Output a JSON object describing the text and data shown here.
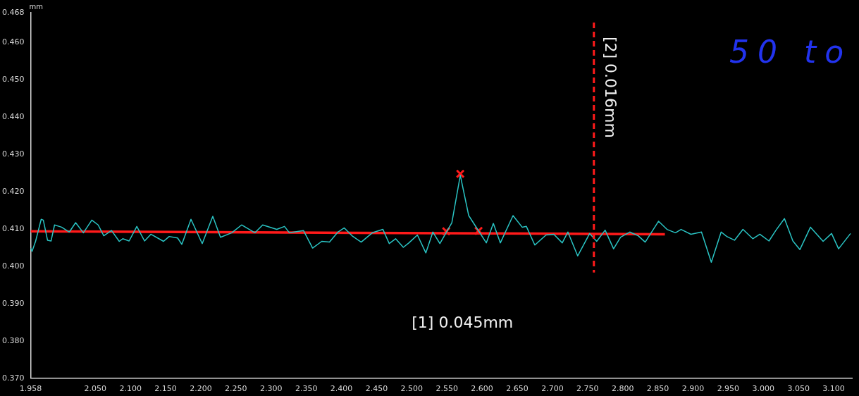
{
  "chart_data": {
    "type": "line",
    "ylabel": "mm",
    "xlim": [
      1.958,
      3.126
    ],
    "ylim": [
      0.37,
      0.468
    ],
    "xticks": [
      1.958,
      {
        "value": 2.05,
        "label": "2.050"
      },
      {
        "value": 2.1,
        "label": "2.100"
      },
      {
        "value": 2.15,
        "label": "2.150"
      },
      {
        "value": 2.2,
        "label": "2.200"
      },
      {
        "value": 2.25,
        "label": "2.250"
      },
      {
        "value": 2.3,
        "label": "2.300"
      },
      {
        "value": 2.35,
        "label": "2.350"
      },
      {
        "value": 2.4,
        "label": "2.400"
      },
      {
        "value": 2.45,
        "label": "2.450"
      },
      {
        "value": 2.5,
        "label": "2.500"
      },
      {
        "value": 2.55,
        "label": "2.550"
      },
      {
        "value": 2.6,
        "label": "2.600"
      },
      {
        "value": 2.65,
        "label": "2.650"
      },
      {
        "value": 2.7,
        "label": "2.700"
      },
      {
        "value": 2.75,
        "label": "2.750"
      },
      {
        "value": 2.8,
        "label": "2.800"
      },
      {
        "value": 2.85,
        "label": "2.850"
      },
      {
        "value": 2.9,
        "label": "2.900"
      },
      {
        "value": 2.95,
        "label": "2.950"
      },
      {
        "value": 3.0,
        "label": "3.000"
      },
      {
        "value": 3.05,
        "label": "3.050"
      },
      {
        "value": 3.1,
        "label": "3.100"
      }
    ],
    "yticks": [
      {
        "value": 0.37,
        "label": "0.370"
      },
      {
        "value": 0.38,
        "label": "0.380"
      },
      {
        "value": 0.39,
        "label": "0.390"
      },
      {
        "value": 0.4,
        "label": "0.400"
      },
      {
        "value": 0.41,
        "label": "0.410"
      },
      {
        "value": 0.42,
        "label": "0.420"
      },
      {
        "value": 0.43,
        "label": "0.430"
      },
      {
        "value": 0.44,
        "label": "0.440"
      },
      {
        "value": 0.45,
        "label": "0.450"
      },
      {
        "value": 0.46,
        "label": "0.460"
      },
      0.468
    ],
    "grid": false,
    "legend": false,
    "series": [
      {
        "color": "#2ac4c4",
        "x": [
          1.958,
          1.96,
          1.965,
          1.973,
          1.976,
          1.982,
          1.987,
          1.992,
          2.002,
          2.013,
          2.022,
          2.033,
          2.045,
          2.054,
          2.062,
          2.073,
          2.084,
          2.089,
          2.098,
          2.109,
          2.12,
          2.129,
          2.147,
          2.155,
          2.167,
          2.173,
          2.186,
          2.202,
          2.217,
          2.228,
          2.244,
          2.258,
          2.277,
          2.288,
          2.308,
          2.319,
          2.326,
          2.346,
          2.359,
          2.372,
          2.383,
          2.395,
          2.404,
          2.415,
          2.428,
          2.444,
          2.459,
          2.468,
          2.477,
          2.488,
          2.496,
          2.508,
          2.52,
          2.53,
          2.54,
          2.557,
          2.569,
          2.581,
          2.593,
          2.606,
          2.616,
          2.626,
          2.644,
          2.657,
          2.663,
          2.675,
          2.691,
          2.702,
          2.714,
          2.722,
          2.736,
          2.753,
          2.763,
          2.775,
          2.787,
          2.797,
          2.81,
          2.822,
          2.832,
          2.851,
          2.863,
          2.875,
          2.883,
          2.897,
          2.912,
          2.926,
          2.94,
          2.948,
          2.959,
          2.971,
          2.985,
          2.995,
          3.008,
          3.018,
          3.03,
          3.042,
          3.052,
          3.067,
          3.085,
          3.097,
          3.107,
          3.124
        ],
        "values": [
          0.4049,
          0.404,
          0.4067,
          0.4126,
          0.4124,
          0.407,
          0.4068,
          0.4111,
          0.4105,
          0.4092,
          0.4117,
          0.409,
          0.4124,
          0.4111,
          0.4082,
          0.4096,
          0.4067,
          0.4074,
          0.4068,
          0.4107,
          0.4068,
          0.4086,
          0.4067,
          0.408,
          0.4076,
          0.4059,
          0.4126,
          0.4061,
          0.4134,
          0.4078,
          0.409,
          0.4111,
          0.409,
          0.4111,
          0.4099,
          0.4107,
          0.409,
          0.4096,
          0.4049,
          0.4067,
          0.4065,
          0.4092,
          0.4103,
          0.4082,
          0.4065,
          0.409,
          0.4099,
          0.4061,
          0.4074,
          0.4051,
          0.4063,
          0.4084,
          0.4036,
          0.4092,
          0.4061,
          0.4117,
          0.4244,
          0.4136,
          0.4101,
          0.4063,
          0.4115,
          0.4063,
          0.4136,
          0.4105,
          0.4107,
          0.4057,
          0.4084,
          0.4086,
          0.4063,
          0.4092,
          0.4028,
          0.4088,
          0.4067,
          0.4097,
          0.4047,
          0.4078,
          0.4092,
          0.4082,
          0.4065,
          0.4121,
          0.4099,
          0.409,
          0.4099,
          0.4086,
          0.4092,
          0.4011,
          0.4092,
          0.408,
          0.407,
          0.4099,
          0.4074,
          0.4086,
          0.4068,
          0.4097,
          0.4128,
          0.4068,
          0.4045,
          0.4105,
          0.4067,
          0.4088,
          0.4047,
          0.4088
        ]
      },
      {
        "type": "line",
        "color": "#ff1a1a",
        "x": [
          1.958,
          2.86
        ],
        "values": [
          0.4094,
          0.4086
        ]
      },
      {
        "type": "scatter",
        "color": "#ff1a1a",
        "marker": "cross",
        "x": [
          2.569,
          2.549,
          2.595
        ],
        "values": [
          0.4248,
          0.4094,
          0.4095
        ]
      }
    ],
    "ref_lines": [
      {
        "axis": "x",
        "value": 2.759,
        "color": "#ff1a1a",
        "line_style": "dashed"
      }
    ],
    "annotations": [
      "[1] 0.045mm",
      {
        "text": "[2] 0.016mm",
        "x": 2.759,
        "y": 0.448
      },
      "50 to"
    ]
  }
}
